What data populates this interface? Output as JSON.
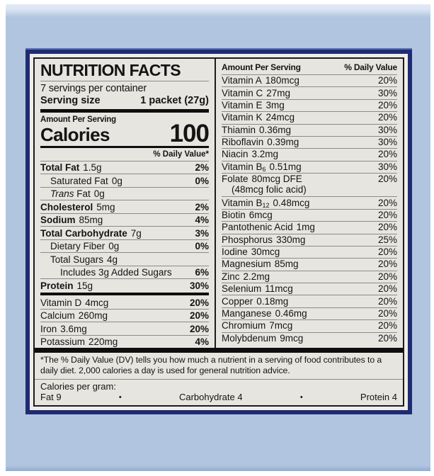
{
  "colors": {
    "navy_border": "#202b72",
    "box_blue": "#b1c5e0",
    "box_flap": "#d8e3f3",
    "label_bg": "#e7e5e0",
    "bar_black": "#0e0e0e"
  },
  "label": {
    "title": "NUTRITION FACTS",
    "servings_per_container": "7 servings per container",
    "serving_size_label": "Serving size",
    "serving_size_value": "1 packet (27g)",
    "amount_per_serving": "Amount Per Serving",
    "calories_label": "Calories",
    "calories_value": "100",
    "daily_value_header": "% Daily Value*",
    "left_rows": [
      {
        "name": "Total Fat",
        "amount": "1.5g",
        "dv": "2%",
        "bold": true
      },
      {
        "name": "Saturated Fat",
        "amount": "0g",
        "dv": "0%",
        "indent": 1
      },
      {
        "name": "Fat",
        "italic_prefix": "Trans",
        "amount": "0g",
        "dv": "",
        "indent": 1
      },
      {
        "name": "Cholesterol",
        "amount": "5mg",
        "dv": "2%",
        "bold": true
      },
      {
        "name": "Sodium",
        "amount": "85mg",
        "dv": "4%",
        "bold": true
      },
      {
        "name": "Total Carbohydrate",
        "amount": "7g",
        "dv": "3%",
        "bold": true
      },
      {
        "name": "Dietary Fiber",
        "amount": "0g",
        "dv": "0%",
        "indent": 1
      },
      {
        "name": "Total Sugars",
        "amount": "4g",
        "dv": "",
        "indent": 1,
        "sep": "indent"
      },
      {
        "name": "Includes 3g Added Sugars",
        "amount": "",
        "dv": "6%",
        "indent": 2
      },
      {
        "name": "Protein",
        "amount": "15g",
        "dv": "30%",
        "bold": true,
        "sep": "none"
      }
    ],
    "left_vitamin_rows": [
      {
        "name": "Vitamin D",
        "amount": "4mcg",
        "dv": "20%"
      },
      {
        "name": "Calcium",
        "amount": "260mg",
        "dv": "20%"
      },
      {
        "name": "Iron",
        "amount": "3.6mg",
        "dv": "20%"
      },
      {
        "name": "Potassium",
        "amount": "220mg",
        "dv": "4%",
        "sep": "none"
      }
    ],
    "right_header_amount": "Amount Per Serving",
    "right_header_dv": "% Daily Value",
    "right_rows": [
      {
        "name": "Vitamin A",
        "amount": "180mcg",
        "dv": "20%"
      },
      {
        "name": "Vitamin C",
        "amount": "27mg",
        "dv": "30%"
      },
      {
        "name": "Vitamin E",
        "amount": "3mg",
        "dv": "20%"
      },
      {
        "name": "Vitamin K",
        "amount": "24mcg",
        "dv": "20%"
      },
      {
        "name": "Thiamin",
        "amount": "0.36mg",
        "dv": "30%"
      },
      {
        "name": "Riboflavin",
        "amount": "0.39mg",
        "dv": "30%"
      },
      {
        "name": "Niacin",
        "amount": "3.2mg",
        "dv": "20%"
      },
      {
        "name": "Vitamin B",
        "sub": "6",
        "amount": "0.51mg",
        "dv": "30%"
      },
      {
        "name": "Folate",
        "amount": "80mcg DFE",
        "dv": "20%",
        "line2": "(48mcg folic acid)"
      },
      {
        "name": "Vitamin B",
        "sub": "12",
        "amount": "0.48mcg",
        "dv": "20%"
      },
      {
        "name": "Biotin",
        "amount": "6mcg",
        "dv": "20%"
      },
      {
        "name": "Pantothenic Acid",
        "amount": "1mg",
        "dv": "20%"
      },
      {
        "name": "Phosphorus",
        "amount": "330mg",
        "dv": "25%"
      },
      {
        "name": "Iodine",
        "amount": "30mcg",
        "dv": "20%"
      },
      {
        "name": "Magnesium",
        "amount": "85mg",
        "dv": "20%"
      },
      {
        "name": "Zinc",
        "amount": "2.2mg",
        "dv": "20%"
      },
      {
        "name": "Selenium",
        "amount": "11mcg",
        "dv": "20%"
      },
      {
        "name": "Copper",
        "amount": "0.18mg",
        "dv": "20%"
      },
      {
        "name": "Manganese",
        "amount": "0.46mg",
        "dv": "20%"
      },
      {
        "name": "Chromium",
        "amount": "7mcg",
        "dv": "20%"
      },
      {
        "name": "Molybdenum",
        "amount": "9mcg",
        "dv": "20%",
        "sep": "none"
      }
    ],
    "footnote": "*The % Daily Value (DV) tells you how much a nutrient in a serving of food contributes to a daily diet. 2,000 calories a day is used for general nutrition advice.",
    "calories_per_gram_label": "Calories per gram:",
    "calories_per_gram": [
      "Fat 9",
      "Carbohydrate 4",
      "Protein 4"
    ],
    "bullet": "•"
  }
}
